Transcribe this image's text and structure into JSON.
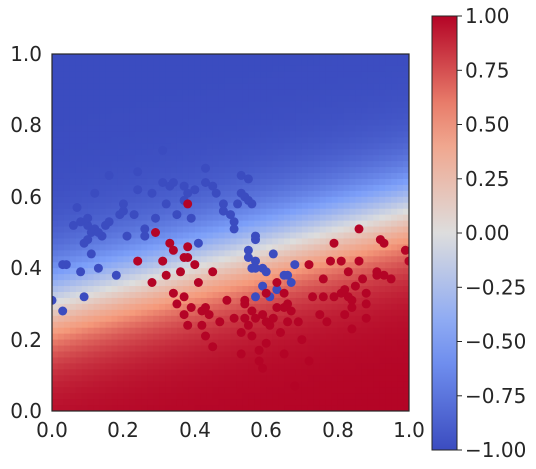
{
  "chart_data": {
    "type": "scatter",
    "title": "",
    "xlabel": "",
    "ylabel": "",
    "xlim": [
      0.0,
      1.0
    ],
    "ylim": [
      0.0,
      1.0
    ],
    "grid": false,
    "x_ticks": [
      "0.0",
      "0.2",
      "0.4",
      "0.6",
      "0.8",
      "1.0"
    ],
    "y_ticks": [
      "0.0",
      "0.2",
      "0.4",
      "0.6",
      "0.8",
      "1.0"
    ],
    "background": "decision-surface",
    "colormap": "coolwarm",
    "colormap_colors": {
      "low": "#3b4cc0",
      "mid": "#dddddd",
      "high": "#b40426"
    },
    "colorbar": {
      "range": [
        -1.0,
        1.0
      ],
      "placement": "right",
      "tick_values": [
        -1.0,
        -0.75,
        -0.5,
        -0.25,
        0.0,
        0.25,
        0.5,
        0.75,
        1.0
      ],
      "tick_labels": [
        "−1.00",
        "−0.75",
        "−0.50",
        "−0.25",
        "0.00",
        "0.25",
        "0.50",
        "0.75",
        "1.00"
      ]
    },
    "series": [
      {
        "color": "#3b4cc0",
        "points": [
          [
            0.0,
            0.31
          ],
          [
            0.03,
            0.28
          ],
          [
            0.03,
            0.41
          ],
          [
            0.04,
            0.41
          ],
          [
            0.06,
            0.52
          ],
          [
            0.07,
            0.57
          ],
          [
            0.08,
            0.39
          ],
          [
            0.09,
            0.32
          ],
          [
            0.09,
            0.47
          ],
          [
            0.1,
            0.52
          ],
          [
            0.1,
            0.54
          ],
          [
            0.11,
            0.44
          ],
          [
            0.11,
            0.5
          ],
          [
            0.12,
            0.51
          ],
          [
            0.12,
            0.61
          ],
          [
            0.13,
            0.4
          ],
          [
            0.14,
            0.49
          ],
          [
            0.15,
            0.52
          ],
          [
            0.16,
            0.66
          ],
          [
            0.16,
            0.53
          ],
          [
            0.18,
            0.38
          ],
          [
            0.19,
            0.55
          ],
          [
            0.2,
            0.56
          ],
          [
            0.2,
            0.58
          ],
          [
            0.23,
            0.55
          ],
          [
            0.24,
            0.62
          ],
          [
            0.24,
            0.67
          ],
          [
            0.26,
            0.51
          ],
          [
            0.26,
            0.49
          ],
          [
            0.28,
            0.61
          ],
          [
            0.29,
            0.54
          ],
          [
            0.31,
            0.64
          ],
          [
            0.31,
            0.73
          ],
          [
            0.32,
            0.58
          ],
          [
            0.33,
            0.63
          ],
          [
            0.34,
            0.64
          ],
          [
            0.35,
            0.55
          ],
          [
            0.37,
            0.63
          ],
          [
            0.37,
            0.59
          ],
          [
            0.38,
            0.61
          ],
          [
            0.39,
            0.54
          ],
          [
            0.4,
            0.62
          ],
          [
            0.41,
            0.47
          ],
          [
            0.43,
            0.64
          ],
          [
            0.43,
            0.68
          ],
          [
            0.45,
            0.63
          ],
          [
            0.46,
            0.61
          ],
          [
            0.48,
            0.58
          ],
          [
            0.48,
            0.56
          ],
          [
            0.5,
            0.55
          ],
          [
            0.51,
            0.53
          ],
          [
            0.51,
            0.51
          ],
          [
            0.52,
            0.58
          ],
          [
            0.53,
            0.61
          ],
          [
            0.53,
            0.66
          ],
          [
            0.54,
            0.6
          ],
          [
            0.55,
            0.59
          ],
          [
            0.56,
            0.58
          ],
          [
            0.55,
            0.65
          ],
          [
            0.55,
            0.45
          ],
          [
            0.55,
            0.43
          ],
          [
            0.56,
            0.4
          ],
          [
            0.57,
            0.42
          ],
          [
            0.57,
            0.49
          ],
          [
            0.57,
            0.48
          ],
          [
            0.57,
            0.32
          ],
          [
            0.59,
            0.35
          ],
          [
            0.59,
            0.4
          ],
          [
            0.6,
            0.39
          ],
          [
            0.61,
            0.32
          ],
          [
            0.62,
            0.44
          ],
          [
            0.63,
            0.34
          ],
          [
            0.65,
            0.38
          ],
          [
            0.66,
            0.38
          ],
          [
            0.67,
            0.36
          ],
          [
            0.68,
            0.41
          ],
          [
            0.57,
            0.4
          ],
          [
            0.21,
            0.49
          ],
          [
            0.13,
            0.5
          ],
          [
            0.08,
            0.53
          ],
          [
            0.1,
            0.48
          ]
        ]
      },
      {
        "color": "#b40426",
        "points": [
          [
            0.24,
            0.42
          ],
          [
            0.28,
            0.36
          ],
          [
            0.29,
            0.5
          ],
          [
            0.31,
            0.42
          ],
          [
            0.32,
            0.38
          ],
          [
            0.33,
            0.47
          ],
          [
            0.34,
            0.45
          ],
          [
            0.34,
            0.33
          ],
          [
            0.35,
            0.3
          ],
          [
            0.36,
            0.39
          ],
          [
            0.37,
            0.32
          ],
          [
            0.37,
            0.43
          ],
          [
            0.37,
            0.27
          ],
          [
            0.38,
            0.24
          ],
          [
            0.38,
            0.58
          ],
          [
            0.38,
            0.43
          ],
          [
            0.38,
            0.46
          ],
          [
            0.39,
            0.29
          ],
          [
            0.4,
            0.41
          ],
          [
            0.41,
            0.36
          ],
          [
            0.42,
            0.28
          ],
          [
            0.42,
            0.24
          ],
          [
            0.43,
            0.29
          ],
          [
            0.43,
            0.21
          ],
          [
            0.44,
            0.27
          ],
          [
            0.45,
            0.39
          ],
          [
            0.45,
            0.18
          ],
          [
            0.47,
            0.25
          ],
          [
            0.49,
            0.31
          ],
          [
            0.51,
            0.26
          ],
          [
            0.53,
            0.22
          ],
          [
            0.53,
            0.16
          ],
          [
            0.54,
            0.31
          ],
          [
            0.54,
            0.3
          ],
          [
            0.54,
            0.26
          ],
          [
            0.55,
            0.24
          ],
          [
            0.56,
            0.28
          ],
          [
            0.56,
            0.21
          ],
          [
            0.57,
            0.26
          ],
          [
            0.58,
            0.17
          ],
          [
            0.58,
            0.14
          ],
          [
            0.59,
            0.12
          ],
          [
            0.59,
            0.27
          ],
          [
            0.6,
            0.33
          ],
          [
            0.6,
            0.25
          ],
          [
            0.6,
            0.19
          ],
          [
            0.61,
            0.24
          ],
          [
            0.62,
            0.26
          ],
          [
            0.63,
            0.36
          ],
          [
            0.63,
            0.29
          ],
          [
            0.64,
            0.22
          ],
          [
            0.65,
            0.33
          ],
          [
            0.65,
            0.29
          ],
          [
            0.65,
            0.16
          ],
          [
            0.66,
            0.25
          ],
          [
            0.66,
            0.3
          ],
          [
            0.67,
            0.28
          ],
          [
            0.68,
            0.07
          ],
          [
            0.69,
            0.25
          ],
          [
            0.7,
            0.2
          ],
          [
            0.72,
            0.14
          ],
          [
            0.72,
            0.41
          ],
          [
            0.73,
            0.32
          ],
          [
            0.75,
            0.27
          ],
          [
            0.76,
            0.37
          ],
          [
            0.77,
            0.25
          ],
          [
            0.78,
            0.42
          ],
          [
            0.79,
            0.47
          ],
          [
            0.81,
            0.42
          ],
          [
            0.81,
            0.33
          ],
          [
            0.82,
            0.34
          ],
          [
            0.82,
            0.27
          ],
          [
            0.83,
            0.32
          ],
          [
            0.83,
            0.39
          ],
          [
            0.84,
            0.31
          ],
          [
            0.84,
            0.29
          ],
          [
            0.84,
            0.23
          ],
          [
            0.85,
            0.35
          ],
          [
            0.86,
            0.51
          ],
          [
            0.86,
            0.42
          ],
          [
            0.87,
            0.37
          ],
          [
            0.88,
            0.33
          ],
          [
            0.88,
            0.3
          ],
          [
            0.88,
            0.26
          ],
          [
            0.91,
            0.38
          ],
          [
            0.91,
            0.39
          ],
          [
            0.92,
            0.48
          ],
          [
            0.93,
            0.38
          ],
          [
            0.93,
            0.47
          ],
          [
            0.95,
            0.37
          ],
          [
            0.99,
            0.45
          ],
          [
            1.0,
            0.42
          ],
          [
            0.79,
            0.32
          ],
          [
            0.76,
            0.32
          ]
        ]
      }
    ]
  }
}
